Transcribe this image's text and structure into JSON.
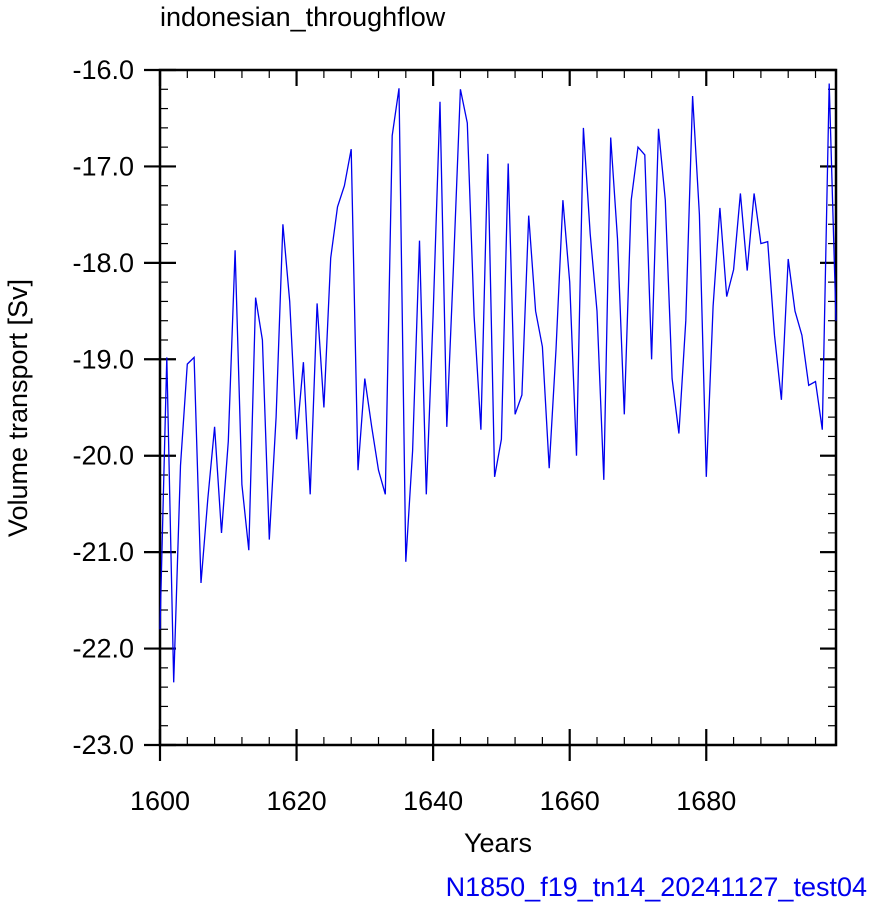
{
  "chart_data": {
    "type": "line",
    "title": "indonesian_throughflow",
    "xlabel": "Years",
    "ylabel": "Volume transport [Sv]",
    "xlim": [
      1600,
      1699
    ],
    "ylim": [
      -23.0,
      -16.0
    ],
    "xticks": [
      1600,
      1620,
      1640,
      1660,
      1680
    ],
    "xtick_labels": [
      "1600",
      "1620",
      "1640",
      "1660",
      "1680"
    ],
    "yticks": [
      -16.0,
      -17.0,
      -18.0,
      -19.0,
      -20.0,
      -21.0,
      -22.0,
      -23.0
    ],
    "ytick_labels": [
      "-16.0",
      "-17.0",
      "-18.0",
      "-19.0",
      "-20.0",
      "-21.0",
      "-22.0",
      "-23.0"
    ],
    "grid": false,
    "line_color": "#0000ee",
    "x": [
      1600,
      1601,
      1602,
      1603,
      1604,
      1605,
      1606,
      1607,
      1608,
      1609,
      1610,
      1611,
      1612,
      1613,
      1614,
      1615,
      1616,
      1617,
      1618,
      1619,
      1620,
      1621,
      1622,
      1623,
      1624,
      1625,
      1626,
      1627,
      1628,
      1629,
      1630,
      1631,
      1632,
      1633,
      1634,
      1635,
      1636,
      1637,
      1638,
      1639,
      1640,
      1641,
      1642,
      1643,
      1644,
      1645,
      1646,
      1647,
      1648,
      1649,
      1650,
      1651,
      1652,
      1653,
      1654,
      1655,
      1656,
      1657,
      1658,
      1659,
      1660,
      1661,
      1662,
      1663,
      1664,
      1665,
      1666,
      1667,
      1668,
      1669,
      1670,
      1671,
      1672,
      1673,
      1674,
      1675,
      1676,
      1677,
      1678,
      1679,
      1680,
      1681,
      1682,
      1683,
      1684,
      1685,
      1686,
      1687,
      1688,
      1689,
      1690,
      1691,
      1692,
      1693,
      1694,
      1695,
      1696,
      1697,
      1698,
      1699
    ],
    "values": [
      -21.8,
      -18.98,
      -22.35,
      -20.1,
      -19.05,
      -18.98,
      -21.32,
      -20.45,
      -19.7,
      -20.8,
      -19.85,
      -17.87,
      -20.3,
      -20.98,
      -18.36,
      -18.8,
      -20.87,
      -19.6,
      -17.6,
      -18.4,
      -19.83,
      -19.03,
      -20.4,
      -18.42,
      -19.5,
      -17.95,
      -17.42,
      -17.2,
      -16.82,
      -20.15,
      -19.2,
      -19.7,
      -20.15,
      -20.4,
      -16.68,
      -16.19,
      -21.1,
      -19.95,
      -17.77,
      -20.4,
      -18.55,
      -16.33,
      -19.7,
      -18.0,
      -16.2,
      -16.55,
      -18.55,
      -19.73,
      -16.87,
      -20.22,
      -19.83,
      -16.97,
      -19.57,
      -19.37,
      -17.51,
      -18.5,
      -18.87,
      -20.13,
      -18.9,
      -17.35,
      -18.2,
      -20.0,
      -16.6,
      -17.7,
      -18.5,
      -20.25,
      -16.7,
      -17.75,
      -19.57,
      -17.35,
      -16.8,
      -16.88,
      -19.0,
      -16.61,
      -17.35,
      -19.2,
      -19.77,
      -18.6,
      -16.27,
      -17.5,
      -20.22,
      -18.45,
      -17.43,
      -18.35,
      -18.07,
      -17.28,
      -18.08,
      -17.28,
      -17.8,
      -17.78,
      -18.75,
      -19.42,
      -17.96,
      -18.5,
      -18.75,
      -19.27,
      -19.23,
      -19.73,
      -16.14,
      -18.6
    ]
  },
  "caption": "N1850_f19_tn14_20241127_test04"
}
